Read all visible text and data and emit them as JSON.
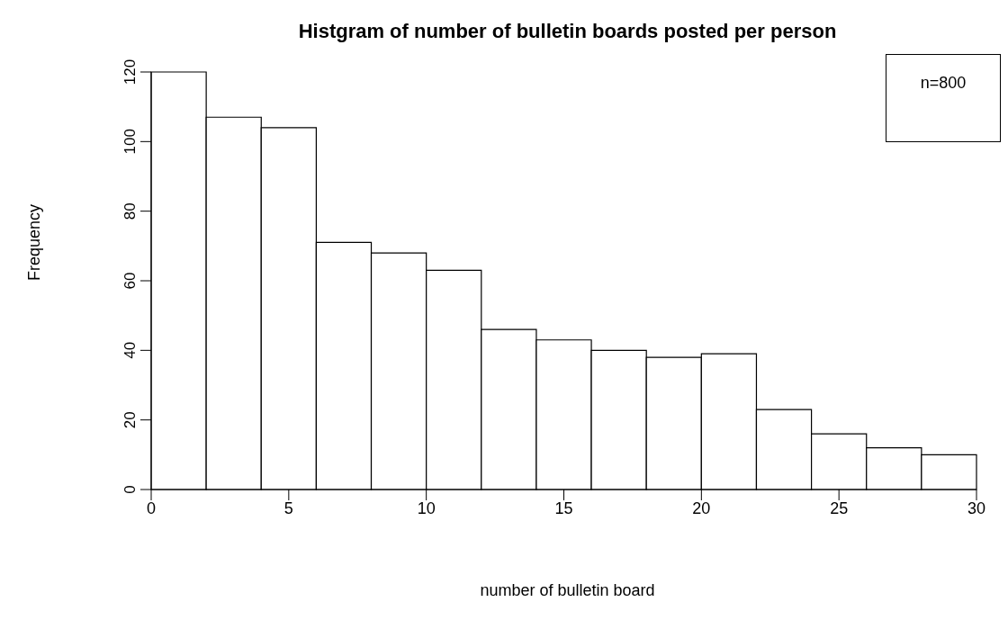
{
  "chart_data": {
    "type": "histogram",
    "title": "Histgram of number of bulletin boards posted per person",
    "xlabel": "number of bulletin board",
    "ylabel": "Frequency",
    "bins": [
      0,
      2,
      4,
      6,
      8,
      10,
      12,
      14,
      16,
      18,
      20,
      22,
      24,
      26,
      28,
      30
    ],
    "values": [
      120,
      107,
      104,
      71,
      68,
      63,
      46,
      43,
      40,
      38,
      39,
      23,
      16,
      12,
      10
    ],
    "color": "#ffffff",
    "xlim": [
      0,
      30
    ],
    "xticks": [
      0,
      5,
      10,
      15,
      20,
      25,
      30
    ],
    "ylim": [
      0,
      120
    ],
    "yticks": [
      0,
      20,
      40,
      60,
      80,
      100,
      120
    ],
    "grid": false,
    "annotations": [
      "n=800"
    ]
  }
}
